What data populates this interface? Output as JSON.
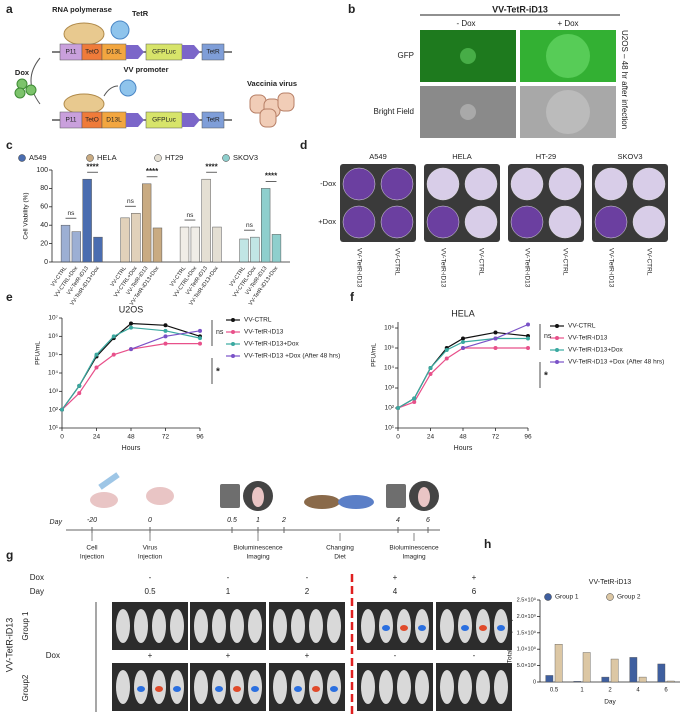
{
  "panel_labels": [
    "a",
    "b",
    "c",
    "d",
    "e",
    "f",
    "g",
    "h"
  ],
  "diagram": {
    "rna_polymerase": "RNA polymerase",
    "tetr_protein": "TetR",
    "cassette": [
      "P11",
      "TetO",
      "D13L",
      "GFPLuc",
      "TetR"
    ],
    "promoter": "VV promoter",
    "dox": "Dox",
    "virus": "Vaccinia virus"
  },
  "microscopy": {
    "title": "VV-TetR-iD13",
    "columns": [
      "- Dox",
      "+ Dox"
    ],
    "rows": [
      "GFP",
      "Bright Field"
    ],
    "side_label": "U2OS – 48 hr after infection"
  },
  "plates": {
    "cell_lines": [
      "A549",
      "HELA",
      "HT-29",
      "SKOV3"
    ],
    "rows": [
      "-Dox",
      "+Dox"
    ],
    "columns": [
      "VV-TetR-iD13",
      "VV-CTRL"
    ]
  },
  "timeline": {
    "day_label": "Day",
    "days": [
      "-20",
      "0",
      "0.5",
      "1",
      "2",
      "4",
      "6"
    ],
    "events": [
      [
        "Cell",
        "Injection"
      ],
      [
        "Virus",
        "Injection"
      ],
      [
        "Bioluminescence",
        "Imaging"
      ],
      [
        "Changing",
        "Diet"
      ],
      [
        "Bioluminescence",
        "Imaging"
      ]
    ]
  },
  "imaging": {
    "dox_label": "Dox",
    "day_label": "Day",
    "dox_group1": [
      "-",
      "-",
      "-",
      "+",
      "+"
    ],
    "days": [
      "0.5",
      "1",
      "2",
      "4",
      "6"
    ],
    "dox_group2": [
      "+",
      "+",
      "+",
      "-",
      "-"
    ],
    "construct": "VV-TetR-iD13",
    "groups": [
      "Group 1",
      "Group2"
    ]
  },
  "chart_data": [
    {
      "type": "bar",
      "y_label": "Cell Viability (%)",
      "categories": [
        "VV-CTRL",
        "VV-CTRL+Dox",
        "VV-TetR-iD13",
        "VV-TetR-iD13+Dox"
      ],
      "series": [
        {
          "name": "A549",
          "color": "#4a6db0",
          "values": [
            40,
            33,
            90,
            27
          ]
        },
        {
          "name": "HELA",
          "color": "#c9ab82",
          "values": [
            48,
            53,
            85,
            37
          ]
        },
        {
          "name": "HT29",
          "color": "#e4dfd3",
          "values": [
            38,
            38,
            90,
            38
          ]
        },
        {
          "name": "SKOV3",
          "color": "#8ecfcd",
          "values": [
            25,
            27,
            80,
            30
          ]
        }
      ],
      "ylim": [
        0,
        100
      ],
      "yticks": [
        0,
        20,
        40,
        60,
        80,
        100
      ],
      "annotations": [
        "ns",
        "****"
      ]
    },
    {
      "type": "line",
      "title": "U2OS",
      "x_label": "Hours",
      "y_label": "PFU/mL",
      "log_y": true,
      "x": [
        0,
        12,
        24,
        36,
        48,
        72,
        96
      ],
      "xlim": [
        0,
        96
      ],
      "xticks": [
        0,
        24,
        48,
        72,
        96
      ],
      "ylim": [
        10,
        10000000
      ],
      "yticks": [
        {
          "value": 10,
          "label": "10¹"
        },
        {
          "value": 100,
          "label": "10²"
        },
        {
          "value": 1000,
          "label": "10³"
        },
        {
          "value": 10000,
          "label": "10⁴"
        },
        {
          "value": 100000,
          "label": "10⁵"
        },
        {
          "value": 1000000,
          "label": "10⁶"
        },
        {
          "value": 10000000,
          "label": "10⁷"
        }
      ],
      "series": [
        {
          "name": "VV-CTRL",
          "color": "#111111",
          "values": [
            100,
            2000,
            80000,
            800000,
            5000000,
            4000000,
            1000000
          ]
        },
        {
          "name": "VV-TetR-iD13",
          "color": "#e8508a",
          "values": [
            100,
            800,
            20000,
            100000,
            200000,
            400000,
            400000
          ]
        },
        {
          "name": "VV-TetR-iD13+Dox",
          "color": "#3aa9a0",
          "values": [
            100,
            2000,
            100000,
            1000000,
            3000000,
            2000000,
            800000
          ]
        },
        {
          "name": "VV-TetR-iD13 +Dox (After 48 hrs)",
          "color": "#7a52c7",
          "values": [
            null,
            null,
            null,
            null,
            200000,
            1000000,
            2000000
          ]
        }
      ],
      "annotations": [
        "ns",
        "*"
      ]
    },
    {
      "type": "line",
      "title": "HELA",
      "x_label": "Hours",
      "y_label": "PFU/mL",
      "log_y": true,
      "x": [
        0,
        12,
        24,
        36,
        48,
        72,
        96
      ],
      "xlim": [
        0,
        96
      ],
      "xticks": [
        0,
        24,
        48,
        72,
        96
      ],
      "ylim": [
        10,
        2000000
      ],
      "yticks": [
        {
          "value": 10,
          "label": "10¹"
        },
        {
          "value": 100,
          "label": "10²"
        },
        {
          "value": 1000,
          "label": "10³"
        },
        {
          "value": 10000,
          "label": "10⁴"
        },
        {
          "value": 100000,
          "label": "10⁵"
        },
        {
          "value": 1000000,
          "label": "10⁶"
        }
      ],
      "series": [
        {
          "name": "VV-CTRL",
          "color": "#111111",
          "values": [
            100,
            300,
            10000,
            100000,
            300000,
            600000,
            400000
          ]
        },
        {
          "name": "VV-TetR-iD13",
          "color": "#e8508a",
          "values": [
            100,
            200,
            5000,
            30000,
            100000,
            100000,
            100000
          ]
        },
        {
          "name": "VV-TetR-iD13+Dox",
          "color": "#3aa9a0",
          "values": [
            100,
            300,
            10000,
            80000,
            200000,
            300000,
            300000
          ]
        },
        {
          "name": "VV-TetR-iD13 +Dox (After 48 hrs)",
          "color": "#7a52c7",
          "values": [
            null,
            null,
            null,
            null,
            100000,
            300000,
            1500000
          ]
        }
      ],
      "annotations": [
        "ns",
        "*"
      ]
    },
    {
      "type": "bar",
      "title": "VV-TetR-iD13",
      "x_label": "Day",
      "y_label": "Total Flux (P/S)",
      "categories": [
        "0.5",
        "1",
        "2",
        "4",
        "6"
      ],
      "series": [
        {
          "name": "Group 1",
          "color": "#3f5f9f",
          "values": [
            200000000,
            20000000,
            150000000,
            750000000,
            550000000
          ]
        },
        {
          "name": "Group 2",
          "color": "#dcc7a4",
          "values": [
            1150000000,
            900000000,
            700000000,
            150000000,
            30000000
          ]
        }
      ],
      "ylim": [
        0,
        2500000000
      ],
      "yticks": [
        0,
        {
          "value": 500000000,
          "label": "5.0×10⁸"
        },
        {
          "value": 1000000000,
          "label": "1.0×10⁹"
        },
        {
          "value": 1500000000,
          "label": "1.5×10⁹"
        },
        {
          "value": 2000000000,
          "label": "2.0×10⁹"
        },
        {
          "value": 2500000000,
          "label": "2.5×10⁹"
        }
      ]
    }
  ]
}
